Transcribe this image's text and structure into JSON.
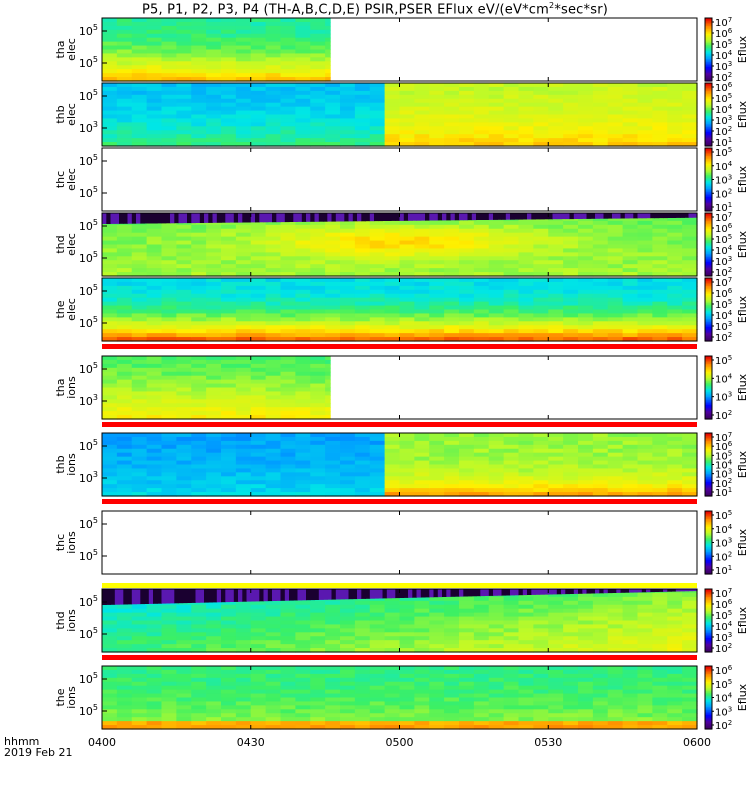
{
  "title_parts": {
    "prefix": "P5, P1, P2, P3, P4 (TH-A,B,C,D,E) PSIR,PSER EFlux eV/(eV*cm",
    "sup": "2",
    "suffix": "*sec*sr)"
  },
  "chart_data": {
    "type": "heatmap",
    "x_axis": {
      "ticks": [
        "0400",
        "0430",
        "0500",
        "0530",
        "0600"
      ],
      "units_label": "hhmm",
      "date_label": "2019 Feb 21"
    },
    "colorbar_label": "Eflux",
    "panels": [
      {
        "id": "tha-elec",
        "probe": "tha",
        "species": "elec",
        "yticks": [
          "10^5",
          "10^5"
        ],
        "cbar_exps": [
          2,
          3,
          4,
          5,
          6,
          7
        ],
        "data": "partial",
        "end": "0446",
        "red_band_below": false,
        "yellow_band_below": false
      },
      {
        "id": "thb-elec",
        "probe": "thb",
        "species": "elec",
        "yticks": [
          "10^5",
          "10^3"
        ],
        "cbar_exps": [
          1,
          2,
          3,
          4,
          5,
          6
        ],
        "data": "full",
        "change": "0456",
        "red_band_below": false,
        "yellow_band_below": false
      },
      {
        "id": "thc-elec",
        "probe": "thc",
        "species": "elec",
        "yticks": [
          "10^5",
          "10^5"
        ],
        "cbar_exps": [
          1,
          2,
          3,
          4,
          5
        ],
        "data": "none",
        "red_band_below": false,
        "yellow_band_below": false
      },
      {
        "id": "thd-elec",
        "probe": "thd",
        "species": "elec",
        "yticks": [
          "10^5",
          "10^5"
        ],
        "cbar_exps": [
          2,
          3,
          4,
          5,
          6,
          7
        ],
        "data": "full",
        "red_band_below": false,
        "yellow_band_below": false
      },
      {
        "id": "the-elec",
        "probe": "the",
        "species": "elec",
        "yticks": [
          "10^5",
          "10^5"
        ],
        "cbar_exps": [
          2,
          3,
          4,
          5,
          6,
          7
        ],
        "data": "full",
        "red_band_below": true,
        "yellow_band_below": false
      },
      {
        "id": "tha-ions",
        "probe": "tha",
        "species": "ions",
        "yticks": [
          "10^5",
          "10^3"
        ],
        "cbar_exps": [
          2,
          3,
          4,
          5
        ],
        "data": "partial",
        "end": "0446",
        "red_band_below": true,
        "yellow_band_below": false
      },
      {
        "id": "thb-ions",
        "probe": "thb",
        "species": "ions",
        "yticks": [
          "10^5",
          "10^3"
        ],
        "cbar_exps": [
          1,
          2,
          3,
          4,
          5,
          6,
          7
        ],
        "data": "full",
        "change": "0456",
        "red_band_below": true,
        "yellow_band_below": false
      },
      {
        "id": "thc-ions",
        "probe": "thc",
        "species": "ions",
        "yticks": [
          "10^5",
          "10^5"
        ],
        "cbar_exps": [
          1,
          2,
          3,
          4,
          5
        ],
        "data": "none",
        "red_band_below": false,
        "yellow_band_below": true
      },
      {
        "id": "thd-ions",
        "probe": "thd",
        "species": "ions",
        "yticks": [
          "10^5",
          "10^5"
        ],
        "cbar_exps": [
          2,
          3,
          4,
          5,
          6,
          7
        ],
        "data": "full",
        "red_band_below": true,
        "yellow_band_below": false
      },
      {
        "id": "the-ions",
        "probe": "the",
        "species": "ions",
        "yticks": [
          "10^5",
          "10^5"
        ],
        "cbar_exps": [
          2,
          3,
          4,
          5,
          6
        ],
        "data": "full",
        "red_band_below": false,
        "yellow_band_below": false
      }
    ]
  }
}
